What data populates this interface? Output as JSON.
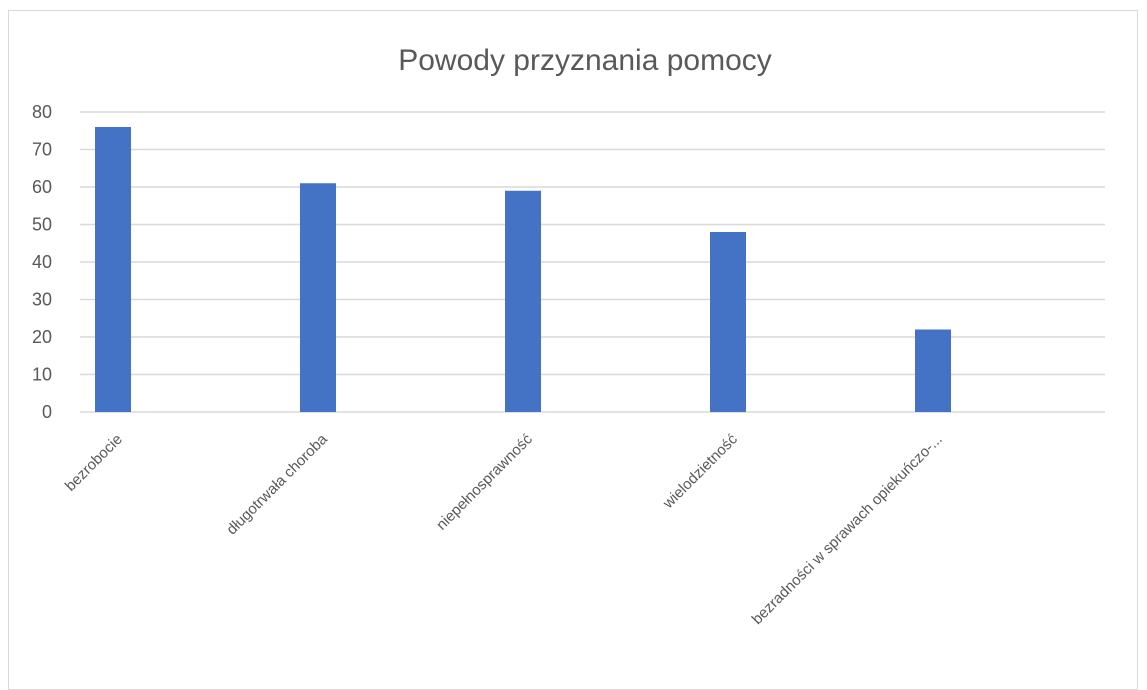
{
  "chart_data": {
    "type": "bar",
    "title": "Powody przyznania pomocy",
    "categories": [
      "bezrobocie",
      "długotrwała choroba",
      "niepełnosprawność",
      "wielodzietność",
      "bezradności w sprawach opiekuńczo-..."
    ],
    "values": [
      76,
      61,
      59,
      48,
      22
    ],
    "ylim": [
      0,
      80
    ],
    "yticks": [
      "0",
      "10",
      "20",
      "30",
      "40",
      "50",
      "60",
      "70",
      "80"
    ],
    "grid": true,
    "legend": "none",
    "bar_color": "#4472C4"
  }
}
